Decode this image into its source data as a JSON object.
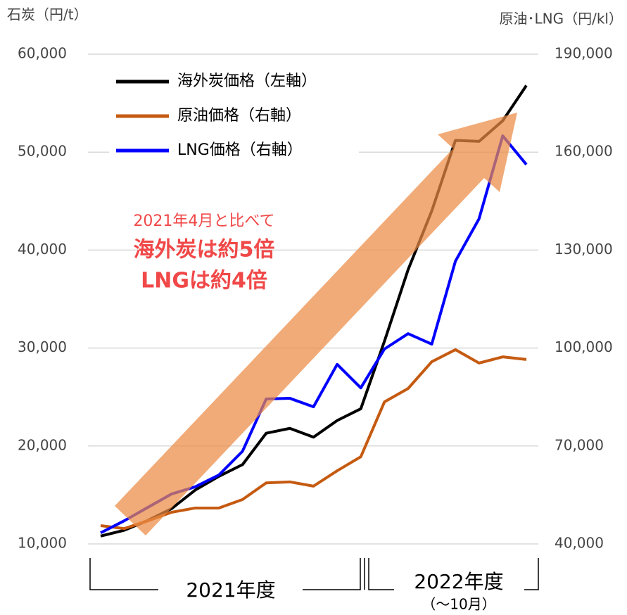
{
  "chart_data": {
    "type": "line",
    "ylabel": "石炭（円/t）",
    "y2label": "原油･LNG（円/kl）",
    "annotation": [
      "2021年4月と比べて",
      "海外炭は約5倍",
      "LNGは約4倍"
    ],
    "groups": [
      "2021年度",
      "2022年度",
      "（～10月）"
    ],
    "categories": [
      null,
      null,
      null,
      null,
      null,
      null,
      null,
      null,
      null,
      null,
      null,
      null,
      null,
      null,
      null,
      null,
      null,
      null,
      null
    ],
    "ylim": [
      10000,
      60000
    ],
    "yticks": [
      {
        "value": 10000,
        "label": "10,000"
      },
      {
        "value": 20000,
        "label": "20,000"
      },
      {
        "value": 30000,
        "label": "30,000"
      },
      {
        "value": 40000,
        "label": "40,000"
      },
      {
        "value": 50000,
        "label": "50,000"
      },
      {
        "value": 60000,
        "label": "60,000"
      }
    ],
    "y2lim": [
      40000,
      190000
    ],
    "y2ticks": [
      {
        "value": 40000,
        "label": "40,000"
      },
      {
        "value": 70000,
        "label": "70,000"
      },
      {
        "value": 100000,
        "label": "100,000"
      },
      {
        "value": 130000,
        "label": "130,000"
      },
      {
        "value": 160000,
        "label": "160,000"
      },
      {
        "value": 190000,
        "label": "190,000"
      }
    ],
    "grid": true,
    "series": [
      {
        "name": "海外炭価格（左軸）",
        "color": "#000000",
        "axis": "y",
        "values": [
          10800,
          11400,
          12400,
          13600,
          15500,
          16900,
          18100,
          21300,
          21800,
          20900,
          22600,
          23800,
          30700,
          38000,
          44000,
          51200,
          51100,
          53200,
          56800
        ]
      },
      {
        "name": "原油価格（右軸）",
        "color": "#c55a11",
        "axis": "y2",
        "values": [
          45600,
          44700,
          47100,
          49700,
          51000,
          51000,
          53600,
          58700,
          59000,
          57700,
          62400,
          66700,
          83500,
          87600,
          95800,
          99500,
          95400,
          97300,
          96500
        ]
      },
      {
        "name": "LNG価格（右軸）",
        "color": "#0000ff",
        "axis": "y2",
        "values": [
          43400,
          47100,
          51200,
          55300,
          57500,
          61100,
          68400,
          84400,
          84600,
          82000,
          95000,
          87800,
          99700,
          104400,
          101200,
          126600,
          139600,
          165000,
          156200
        ]
      }
    ]
  }
}
